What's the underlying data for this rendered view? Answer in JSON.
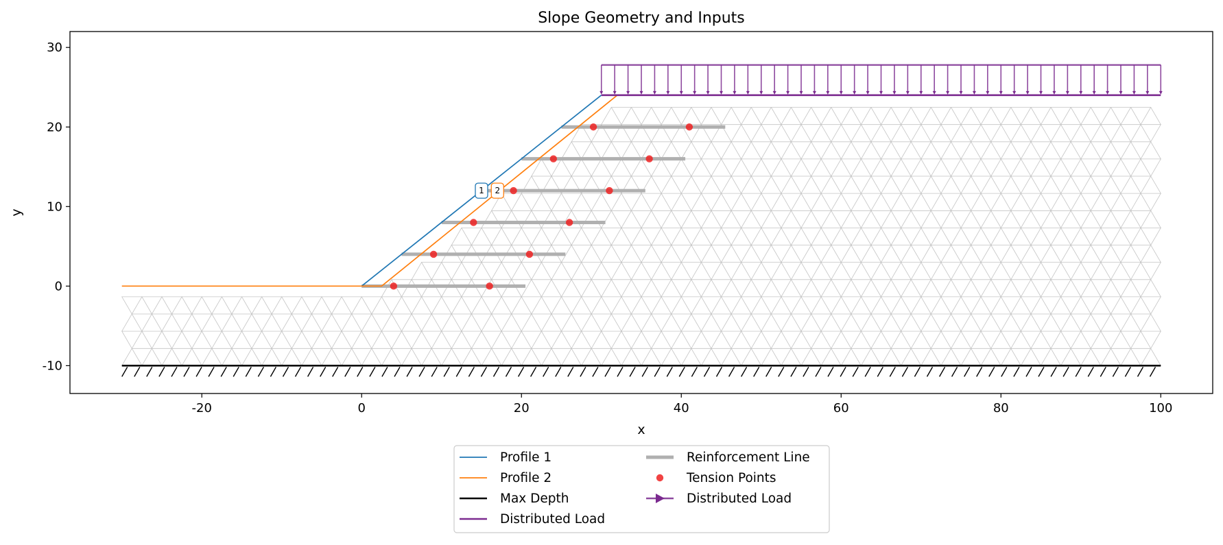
{
  "chart_data": {
    "type": "line",
    "title": "Slope Geometry and Inputs",
    "xlabel": "x",
    "ylabel": "y",
    "xlim": [
      -36.5,
      106.5
    ],
    "ylim": [
      -13.5,
      32
    ],
    "xticks": [
      -20,
      0,
      20,
      40,
      60,
      80,
      100
    ],
    "yticks": [
      -10,
      0,
      10,
      20,
      30
    ],
    "grid": false,
    "legend_placement": "bottom-center",
    "colors": {
      "profile1": "#1f77b4",
      "profile2": "#ff7f0e",
      "max_depth": "#000000",
      "dist_load": "#7b2a8f",
      "reinforcement": "#b0b0b0",
      "tension": "#ee2222",
      "mesh": "#c4c4c4"
    },
    "profile1": {
      "name": "Profile 1",
      "label": "1",
      "points": [
        [
          0,
          0
        ],
        [
          30,
          24
        ]
      ]
    },
    "profile2": {
      "name": "Profile 2",
      "label": "2",
      "points": [
        [
          -30,
          0
        ],
        [
          2.5,
          0
        ],
        [
          32,
          24
        ]
      ]
    },
    "max_depth": {
      "name": "Max Depth",
      "y": -10,
      "x": [
        -30,
        100
      ]
    },
    "distributed_load": {
      "name": "Distributed Load",
      "arrow_name": "Distributed Load",
      "x": [
        30,
        100
      ],
      "base_y": 24,
      "top_y": 27.8,
      "arrow_count": 43
    },
    "reinforcement_lines": {
      "name": "Reinforcement Line",
      "lines": [
        {
          "y": 0,
          "x": [
            0,
            20.5
          ]
        },
        {
          "y": 4,
          "x": [
            5,
            25.5
          ]
        },
        {
          "y": 8,
          "x": [
            10,
            30.5
          ]
        },
        {
          "y": 12,
          "x": [
            15,
            35.5
          ]
        },
        {
          "y": 16,
          "x": [
            20,
            40.5
          ]
        },
        {
          "y": 20,
          "x": [
            25,
            45.5
          ]
        }
      ]
    },
    "tension_points": {
      "name": "Tension Points",
      "points": [
        [
          4,
          0
        ],
        [
          16,
          0
        ],
        [
          9,
          4
        ],
        [
          21,
          4
        ],
        [
          14,
          8
        ],
        [
          26,
          8
        ],
        [
          19,
          12
        ],
        [
          31,
          12
        ],
        [
          24,
          16
        ],
        [
          36,
          16
        ],
        [
          29,
          20
        ],
        [
          41,
          20
        ]
      ]
    },
    "mesh": {
      "x_min": -30,
      "x_max": 100,
      "y_min": -10,
      "spacing": 2.5
    }
  }
}
